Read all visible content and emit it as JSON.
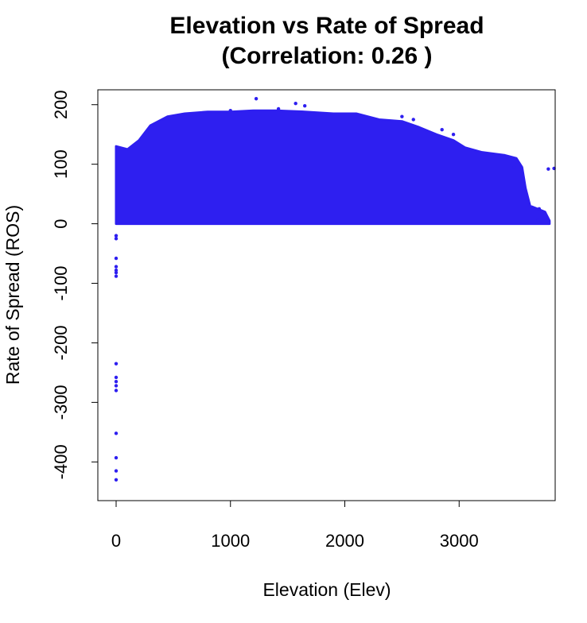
{
  "chart_data": {
    "type": "scatter",
    "title": "Elevation vs Rate of Spread",
    "subtitle": "(Correlation: 0.26 )",
    "xlabel": "Elevation (Elev)",
    "ylabel": "Rate of Spread (ROS)",
    "xlim": [
      -160,
      3840
    ],
    "ylim": [
      -465,
      225
    ],
    "xticks": [
      0,
      1000,
      2000,
      3000
    ],
    "yticks": [
      200,
      100,
      0,
      -100,
      -200,
      -300,
      -400
    ],
    "grid": false,
    "legend": "none",
    "point_color": "#2e1ff0",
    "upper_envelope": [
      [
        0,
        130
      ],
      [
        100,
        125
      ],
      [
        200,
        140
      ],
      [
        300,
        165
      ],
      [
        450,
        180
      ],
      [
        600,
        185
      ],
      [
        800,
        188
      ],
      [
        1000,
        188
      ],
      [
        1200,
        190
      ],
      [
        1400,
        190
      ],
      [
        1650,
        188
      ],
      [
        1900,
        185
      ],
      [
        2100,
        185
      ],
      [
        2300,
        175
      ],
      [
        2500,
        172
      ],
      [
        2650,
        162
      ],
      [
        2800,
        150
      ],
      [
        2950,
        140
      ],
      [
        3050,
        128
      ],
      [
        3200,
        120
      ],
      [
        3400,
        115
      ],
      [
        3500,
        110
      ],
      [
        3550,
        95
      ],
      [
        3580,
        60
      ],
      [
        3620,
        30
      ],
      [
        3750,
        20
      ],
      [
        3790,
        5
      ]
    ],
    "series": [
      {
        "values": [
          {
            "x": 1225,
            "y": 210
          },
          {
            "x": 1570,
            "y": 202
          },
          {
            "x": 1650,
            "y": 198
          },
          {
            "x": 1420,
            "y": 193
          },
          {
            "x": 1000,
            "y": 190
          },
          {
            "x": 2500,
            "y": 180
          },
          {
            "x": 2600,
            "y": 175
          },
          {
            "x": 2850,
            "y": 158
          },
          {
            "x": 2950,
            "y": 150
          },
          {
            "x": 3420,
            "y": 112
          },
          {
            "x": 3480,
            "y": 95
          },
          {
            "x": 3550,
            "y": 70
          },
          {
            "x": 3780,
            "y": 92
          },
          {
            "x": 3830,
            "y": 93
          },
          {
            "x": 3700,
            "y": 25
          },
          {
            "x": 3750,
            "y": 18
          },
          {
            "x": 3690,
            "y": 5
          },
          {
            "x": 0,
            "y": -20
          },
          {
            "x": 0,
            "y": -25
          },
          {
            "x": 0,
            "y": -58
          },
          {
            "x": 0,
            "y": -72
          },
          {
            "x": 0,
            "y": -78
          },
          {
            "x": 0,
            "y": -82
          },
          {
            "x": 0,
            "y": -88
          },
          {
            "x": 0,
            "y": -235
          },
          {
            "x": 0,
            "y": -258
          },
          {
            "x": 0,
            "y": -265
          },
          {
            "x": 0,
            "y": -272
          },
          {
            "x": 0,
            "y": -280
          },
          {
            "x": 0,
            "y": -352
          },
          {
            "x": 0,
            "y": -393
          },
          {
            "x": 0,
            "y": -415
          },
          {
            "x": 0,
            "y": -430
          }
        ]
      }
    ]
  }
}
